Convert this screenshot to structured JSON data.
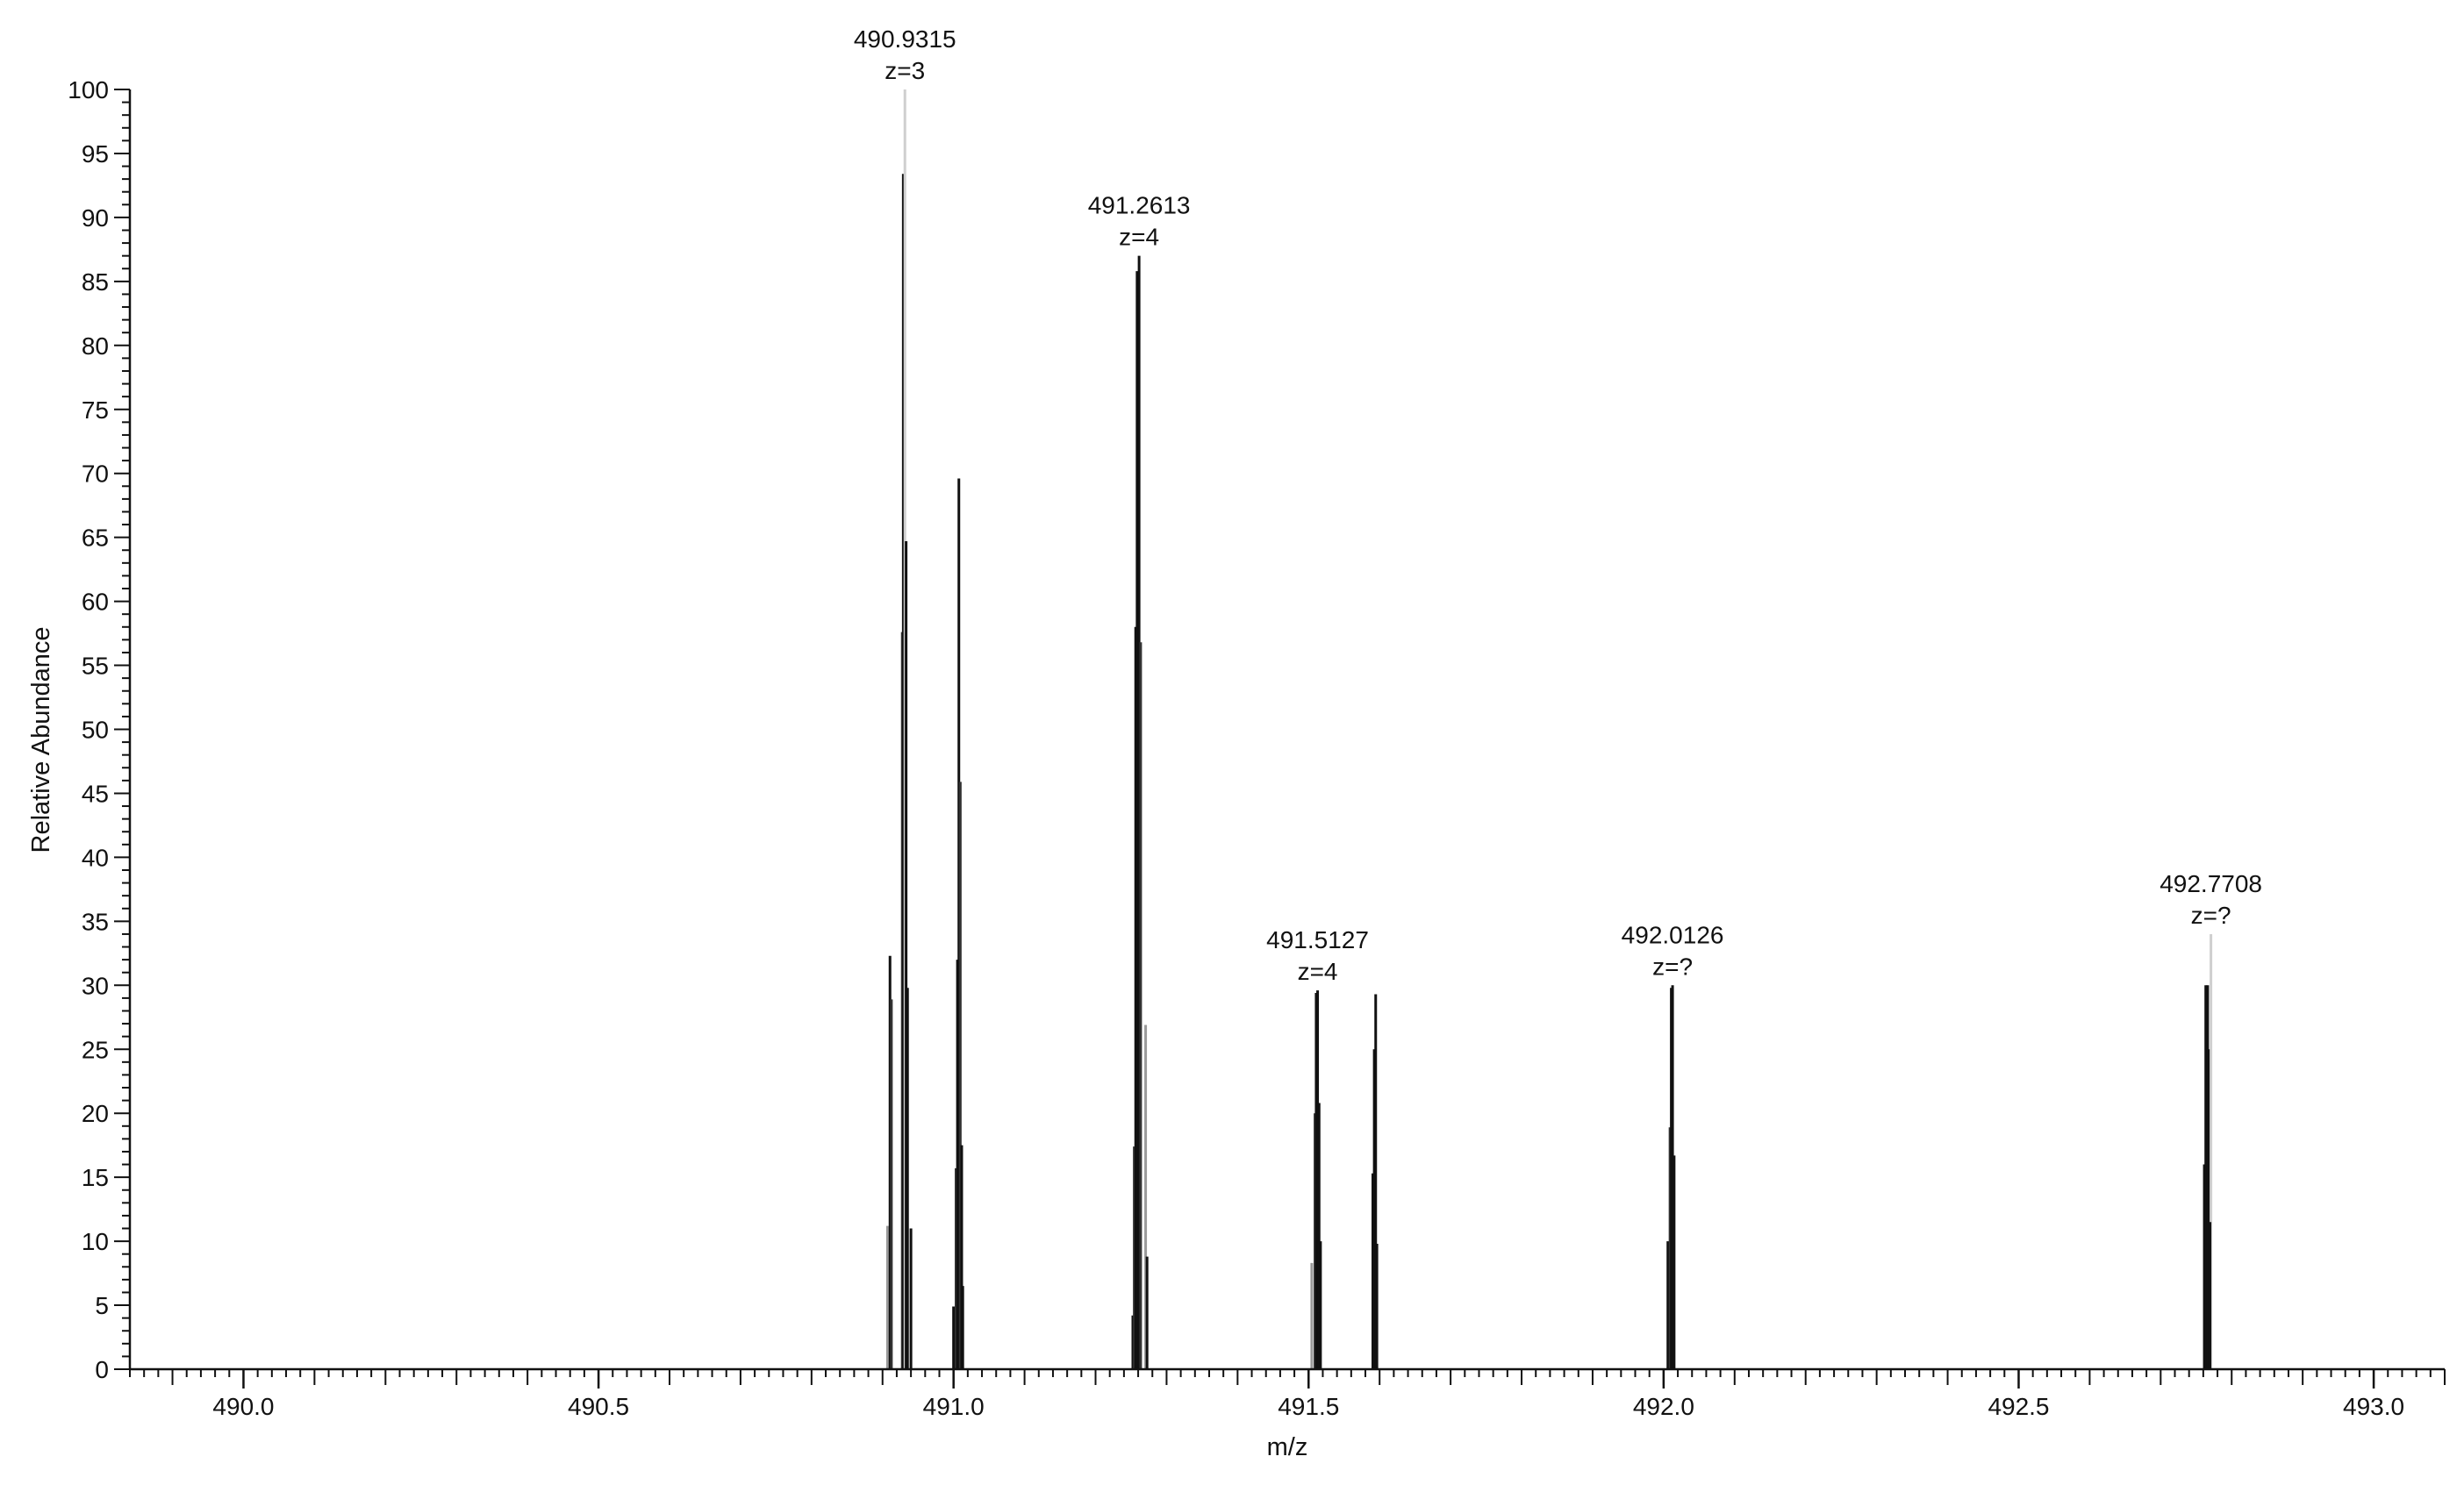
{
  "chart_data": {
    "type": "spectrum",
    "title": "",
    "xlabel": "m/z",
    "ylabel": "Relative Abundance",
    "xlim": [
      489.84,
      493.1
    ],
    "ylim": [
      0,
      100
    ],
    "x_ticks": [
      490.0,
      490.5,
      491.0,
      491.5,
      492.0,
      492.5,
      493.0
    ],
    "x_tick_labels": [
      "490.0",
      "490.5",
      "491.0",
      "491.5",
      "492.0",
      "492.5",
      "493.0"
    ],
    "y_ticks": [
      0,
      5,
      10,
      15,
      20,
      25,
      30,
      35,
      40,
      45,
      50,
      55,
      60,
      65,
      70,
      75,
      80,
      85,
      90,
      95,
      100
    ],
    "y_tick_labels": [
      "0",
      "5",
      "10",
      "15",
      "20",
      "25",
      "30",
      "35",
      "40",
      "45",
      "50",
      "55",
      "60",
      "65",
      "70",
      "75",
      "80",
      "85",
      "90",
      "95",
      "100"
    ],
    "x_minor_step": 0.02,
    "y_minor_step": 1,
    "grid": false,
    "peaks": [
      {
        "mz": 490.907,
        "intensity": 11.2,
        "color": "#9a9a9a"
      },
      {
        "mz": 490.9105,
        "intensity": 32.3,
        "color": "#111111"
      },
      {
        "mz": 490.9125,
        "intensity": 28.9,
        "color": "#333333"
      },
      {
        "mz": 490.9278,
        "intensity": 57.6,
        "color": "#333333"
      },
      {
        "mz": 490.9292,
        "intensity": 93.4,
        "color": "#111111"
      },
      {
        "mz": 490.9315,
        "intensity": 100,
        "color": "#cfcfcf"
      },
      {
        "mz": 490.9332,
        "intensity": 64.7,
        "color": "#111111"
      },
      {
        "mz": 490.9352,
        "intensity": 29.8,
        "color": "#111111"
      },
      {
        "mz": 490.94,
        "intensity": 11.0,
        "color": "#111111"
      },
      {
        "mz": 491.0,
        "intensity": 4.9,
        "color": "#111111"
      },
      {
        "mz": 491.0035,
        "intensity": 15.7,
        "color": "#333333"
      },
      {
        "mz": 491.0055,
        "intensity": 32.0,
        "color": "#111111"
      },
      {
        "mz": 491.0075,
        "intensity": 69.6,
        "color": "#111111"
      },
      {
        "mz": 491.0095,
        "intensity": 45.9,
        "color": "#333333"
      },
      {
        "mz": 491.0115,
        "intensity": 17.5,
        "color": "#111111"
      },
      {
        "mz": 491.013,
        "intensity": 6.5,
        "color": "#111111"
      },
      {
        "mz": 491.2525,
        "intensity": 4.2,
        "color": "#111111"
      },
      {
        "mz": 491.2545,
        "intensity": 17.4,
        "color": "#333333"
      },
      {
        "mz": 491.2565,
        "intensity": 58.0,
        "color": "#111111"
      },
      {
        "mz": 491.2585,
        "intensity": 85.8,
        "color": "#111111"
      },
      {
        "mz": 491.2613,
        "intensity": 87.0,
        "color": "#111111"
      },
      {
        "mz": 491.2635,
        "intensity": 56.8,
        "color": "#333333"
      },
      {
        "mz": 491.2705,
        "intensity": 26.9,
        "color": "#9a9a9a"
      },
      {
        "mz": 491.2725,
        "intensity": 8.8,
        "color": "#111111"
      },
      {
        "mz": 491.5045,
        "intensity": 8.3,
        "color": "#9a9a9a"
      },
      {
        "mz": 491.509,
        "intensity": 20.0,
        "color": "#333333"
      },
      {
        "mz": 491.5107,
        "intensity": 29.4,
        "color": "#111111"
      },
      {
        "mz": 491.5127,
        "intensity": 29.6,
        "color": "#111111"
      },
      {
        "mz": 491.5148,
        "intensity": 20.8,
        "color": "#111111"
      },
      {
        "mz": 491.5168,
        "intensity": 10.0,
        "color": "#111111"
      },
      {
        "mz": 491.5905,
        "intensity": 15.3,
        "color": "#111111"
      },
      {
        "mz": 491.5925,
        "intensity": 25.0,
        "color": "#111111"
      },
      {
        "mz": 491.5945,
        "intensity": 29.3,
        "color": "#111111"
      },
      {
        "mz": 491.5962,
        "intensity": 9.8,
        "color": "#111111"
      },
      {
        "mz": 492.006,
        "intensity": 10.0,
        "color": "#111111"
      },
      {
        "mz": 492.009,
        "intensity": 18.9,
        "color": "#333333"
      },
      {
        "mz": 492.0108,
        "intensity": 29.8,
        "color": "#111111"
      },
      {
        "mz": 492.0126,
        "intensity": 30.0,
        "color": "#111111"
      },
      {
        "mz": 492.0148,
        "intensity": 16.7,
        "color": "#111111"
      },
      {
        "mz": 492.7615,
        "intensity": 16.0,
        "color": "#111111"
      },
      {
        "mz": 492.7635,
        "intensity": 30.0,
        "color": "#111111"
      },
      {
        "mz": 492.7662,
        "intensity": 30.0,
        "color": "#111111"
      },
      {
        "mz": 492.7682,
        "intensity": 25.0,
        "color": "#111111"
      },
      {
        "mz": 492.7708,
        "intensity": 34.0,
        "color": "#cfcfcf"
      },
      {
        "mz": 492.7695,
        "intensity": 11.5,
        "color": "#111111"
      }
    ],
    "annotations": [
      {
        "mz": 490.9315,
        "intensity": 100,
        "text": "490.9315",
        "charge": "z=3"
      },
      {
        "mz": 491.2613,
        "intensity": 87.0,
        "text": "491.2613",
        "charge": "z=4"
      },
      {
        "mz": 491.5127,
        "intensity": 29.6,
        "text": "491.5127",
        "charge": "z=4"
      },
      {
        "mz": 492.0126,
        "intensity": 30.0,
        "text": "492.0126",
        "charge": "z=?"
      },
      {
        "mz": 492.7708,
        "intensity": 34.0,
        "text": "492.7708",
        "charge": "z=?"
      }
    ],
    "colors": {
      "axis": "#111111",
      "peak": "#111111",
      "background": "#ffffff"
    }
  }
}
